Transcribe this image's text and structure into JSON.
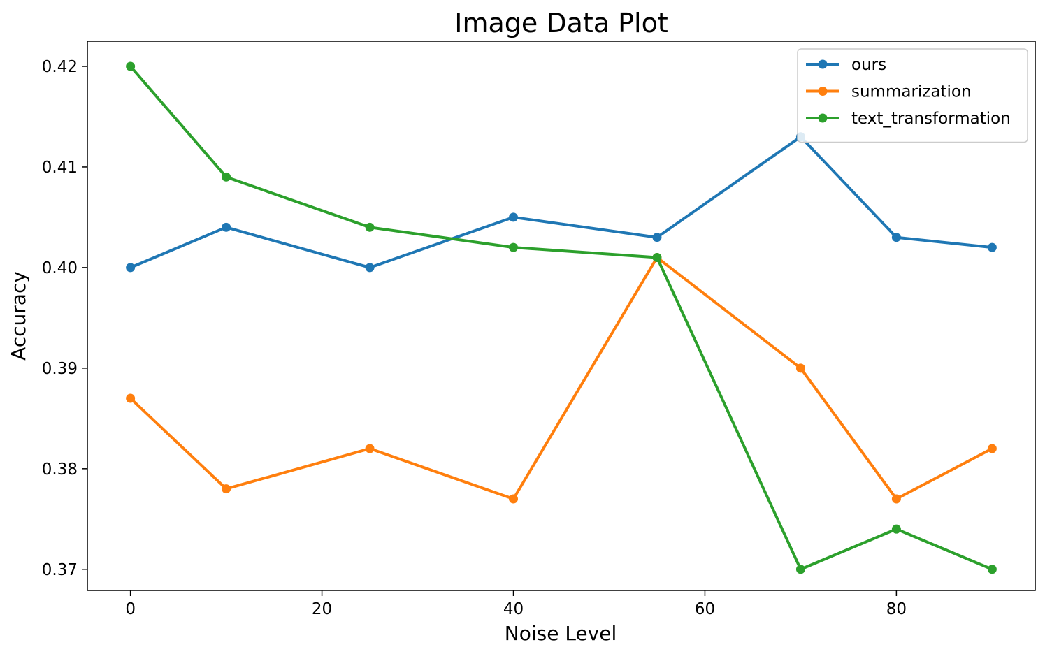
{
  "chart_data": {
    "type": "line",
    "title": "Image Data Plot",
    "xlabel": "Noise Level",
    "ylabel": "Accuracy",
    "x": [
      0,
      10,
      25,
      40,
      55,
      70,
      80,
      90
    ],
    "xlim": [
      -4.5,
      94.5
    ],
    "ylim": [
      0.3679,
      0.4225
    ],
    "xticks": [
      0,
      20,
      40,
      60,
      80
    ],
    "yticks": [
      0.37,
      0.38,
      0.39,
      0.4,
      0.41,
      0.42
    ],
    "ytick_labels": [
      "0.37",
      "0.38",
      "0.39",
      "0.40",
      "0.41",
      "0.42"
    ],
    "grid": false,
    "legend": "top-right",
    "series": [
      {
        "name": "ours",
        "color": "#1f77b4",
        "values": [
          0.4,
          0.404,
          0.4,
          0.405,
          0.403,
          0.413,
          0.403,
          0.402
        ]
      },
      {
        "name": "summarization",
        "color": "#ff7f0e",
        "values": [
          0.387,
          0.378,
          0.382,
          0.377,
          0.401,
          0.39,
          0.377,
          0.382
        ]
      },
      {
        "name": "text_transformation",
        "color": "#2ca02c",
        "values": [
          0.42,
          0.409,
          0.404,
          0.402,
          0.401,
          0.37,
          0.374,
          0.37
        ]
      }
    ]
  }
}
